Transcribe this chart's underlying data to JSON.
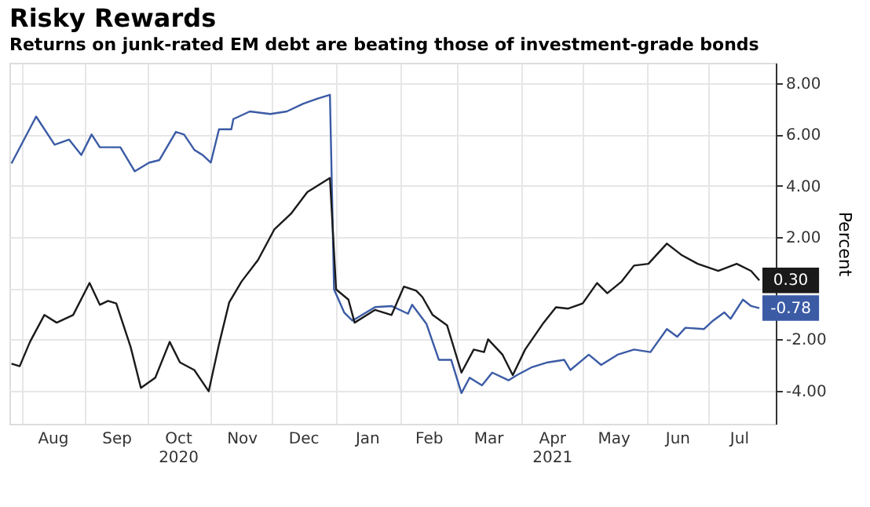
{
  "chart_data": {
    "type": "line",
    "title": "Risky Rewards",
    "subtitle": "Returns on junk-rated EM debt are beating those of investment-grade bonds",
    "ylabel": "Percent",
    "xlim": [
      "2020-07-26",
      "2021-08-03"
    ],
    "ylim": [
      -5.3,
      8.8
    ],
    "xticks": [
      {
        "value": "2020-08-01",
        "label": null
      },
      {
        "value": "2020-08-16",
        "label": "Aug"
      },
      {
        "value": "2020-09-01",
        "label": null
      },
      {
        "value": "2020-09-16",
        "label": "Sep"
      },
      {
        "value": "2020-10-01",
        "label": null
      },
      {
        "value": "2020-10-16",
        "label": "Oct\n2020"
      },
      {
        "value": "2020-11-01",
        "label": null
      },
      {
        "value": "2020-11-16",
        "label": "Nov"
      },
      {
        "value": "2020-12-01",
        "label": null
      },
      {
        "value": "2020-12-16",
        "label": "Dec"
      },
      {
        "value": "2021-01-01",
        "label": null
      },
      {
        "value": "2021-01-16",
        "label": "Jan"
      },
      {
        "value": "2021-02-01",
        "label": null
      },
      {
        "value": "2021-02-15",
        "label": "Feb"
      },
      {
        "value": "2021-03-01",
        "label": null
      },
      {
        "value": "2021-03-16",
        "label": "Mar"
      },
      {
        "value": "2021-04-01",
        "label": null
      },
      {
        "value": "2021-04-16",
        "label": "Apr\n2021"
      },
      {
        "value": "2021-05-01",
        "label": null
      },
      {
        "value": "2021-05-16",
        "label": "May"
      },
      {
        "value": "2021-06-01",
        "label": null
      },
      {
        "value": "2021-06-16",
        "label": "Jun"
      },
      {
        "value": "2021-07-01",
        "label": null
      },
      {
        "value": "2021-07-16",
        "label": "Jul"
      }
    ],
    "yticks": [
      {
        "value": -4,
        "label": "-4.00"
      },
      {
        "value": -2,
        "label": "-2.00"
      },
      {
        "value": 0,
        "label": null
      },
      {
        "value": 2,
        "label": "2.00"
      },
      {
        "value": 4,
        "label": "4.00"
      },
      {
        "value": 6,
        "label": "6.00"
      },
      {
        "value": 8,
        "label": "8.00"
      }
    ],
    "grid": true,
    "line_style": "solid",
    "marker": "none",
    "series": [
      {
        "color": "#3b5ba5",
        "x": [
          "2020-07-27",
          "2020-08-08",
          "2020-08-17",
          "2020-08-24",
          "2020-08-30",
          "2020-09-04",
          "2020-09-08",
          "2020-09-18",
          "2020-09-25",
          "2020-10-02",
          "2020-10-07",
          "2020-10-15",
          "2020-10-19",
          "2020-10-24",
          "2020-10-28",
          "2020-11-01",
          "2020-11-05",
          "2020-11-11",
          "2020-11-12",
          "2020-11-20",
          "2020-11-30",
          "2020-12-08",
          "2020-12-16",
          "2020-12-23",
          "2020-12-29",
          "2020-12-31",
          "2021-01-05",
          "2021-01-09",
          "2021-01-20",
          "2021-01-28",
          "2021-02-05",
          "2021-02-07",
          "2021-02-14",
          "2021-02-20",
          "2021-02-26",
          "2021-03-03",
          "2021-03-07",
          "2021-03-13",
          "2021-03-18",
          "2021-03-26",
          "2021-03-30",
          "2021-04-06",
          "2021-04-14",
          "2021-04-22",
          "2021-04-25",
          "2021-05-04",
          "2021-05-10",
          "2021-05-18",
          "2021-05-26",
          "2021-06-03",
          "2021-06-11",
          "2021-06-16",
          "2021-06-20",
          "2021-06-29",
          "2021-07-03",
          "2021-07-09",
          "2021-07-12",
          "2021-07-18",
          "2021-07-22",
          "2021-07-26"
        ],
        "values": [
          4.87,
          6.7,
          5.6,
          5.8,
          5.2,
          6.0,
          5.5,
          5.5,
          4.56,
          4.9,
          5.0,
          6.1,
          6.0,
          5.4,
          5.2,
          4.9,
          6.2,
          6.2,
          6.6,
          6.9,
          6.8,
          6.9,
          7.2,
          7.4,
          7.55,
          -0.05,
          -0.96,
          -1.27,
          -0.74,
          -0.7,
          -1.0,
          -0.65,
          -1.4,
          -2.8,
          -2.8,
          -4.1,
          -3.5,
          -3.8,
          -3.3,
          -3.6,
          -3.4,
          -3.1,
          -2.9,
          -2.8,
          -3.2,
          -2.6,
          -3.0,
          -2.6,
          -2.4,
          -2.5,
          -1.6,
          -1.9,
          -1.55,
          -1.6,
          -1.3,
          -0.95,
          -1.2,
          -0.45,
          -0.7,
          -0.78
        ],
        "value_labels": [
          null,
          null,
          null,
          null,
          null,
          null,
          null,
          null,
          null,
          null,
          null,
          null,
          null,
          null,
          null,
          null,
          null,
          null,
          null,
          null,
          null,
          null,
          null,
          null,
          null,
          null,
          null,
          null,
          null,
          null,
          null,
          null,
          null,
          null,
          null,
          null,
          null,
          null,
          null,
          null,
          null,
          null,
          null,
          null,
          null,
          null,
          null,
          null,
          null,
          null,
          null,
          null,
          null,
          null,
          null,
          null,
          null,
          null,
          null,
          "-0.78"
        ]
      },
      {
        "color": "#1a1a1a",
        "x": [
          "2020-07-27",
          "2020-07-31",
          "2020-08-05",
          "2020-08-12",
          "2020-08-18",
          "2020-08-26",
          "2020-09-03",
          "2020-09-08",
          "2020-09-12",
          "2020-09-16",
          "2020-09-23",
          "2020-09-28",
          "2020-10-05",
          "2020-10-12",
          "2020-10-17",
          "2020-10-24",
          "2020-10-31",
          "2020-11-05",
          "2020-11-10",
          "2020-11-16",
          "2020-11-24",
          "2020-12-02",
          "2020-12-10",
          "2020-12-18",
          "2020-12-29",
          "2021-01-01",
          "2021-01-07",
          "2021-01-10",
          "2021-01-20",
          "2021-01-28",
          "2021-02-03",
          "2021-02-09",
          "2021-02-12",
          "2021-02-17",
          "2021-02-24",
          "2021-03-03",
          "2021-03-09",
          "2021-03-14",
          "2021-03-16",
          "2021-03-23",
          "2021-03-28",
          "2021-04-03",
          "2021-04-12",
          "2021-04-18",
          "2021-04-24",
          "2021-05-01",
          "2021-05-08",
          "2021-05-13",
          "2021-05-20",
          "2021-05-26",
          "2021-06-02",
          "2021-06-06",
          "2021-06-11",
          "2021-06-18",
          "2021-06-26",
          "2021-07-06",
          "2021-07-15",
          "2021-07-22",
          "2021-07-26"
        ],
        "values": [
          -2.95,
          -3.05,
          -2.1,
          -1.05,
          -1.35,
          -1.05,
          0.2,
          -0.65,
          -0.5,
          -0.6,
          -2.3,
          -3.9,
          -3.5,
          -2.1,
          -2.9,
          -3.2,
          -4.03,
          -2.2,
          -0.55,
          0.26,
          1.1,
          2.3,
          2.9,
          3.75,
          4.3,
          -0.05,
          -0.45,
          -1.35,
          -0.85,
          -1.05,
          0.06,
          -0.1,
          -0.35,
          -1.05,
          -1.45,
          -3.3,
          -2.4,
          -2.5,
          -2.0,
          -2.6,
          -3.4,
          -2.4,
          -1.35,
          -0.75,
          -0.8,
          -0.6,
          0.2,
          -0.2,
          0.26,
          0.88,
          0.95,
          1.3,
          1.74,
          1.3,
          0.95,
          0.67,
          0.95,
          0.67,
          0.3
        ],
        "value_labels": [
          null,
          null,
          null,
          null,
          null,
          null,
          null,
          null,
          null,
          null,
          null,
          null,
          null,
          null,
          null,
          null,
          null,
          null,
          null,
          null,
          null,
          null,
          null,
          null,
          null,
          null,
          null,
          null,
          null,
          null,
          null,
          null,
          null,
          null,
          null,
          null,
          null,
          null,
          null,
          null,
          null,
          null,
          null,
          null,
          null,
          null,
          null,
          null,
          null,
          null,
          null,
          null,
          null,
          null,
          null,
          null,
          null,
          null,
          "0.30"
        ]
      }
    ]
  }
}
